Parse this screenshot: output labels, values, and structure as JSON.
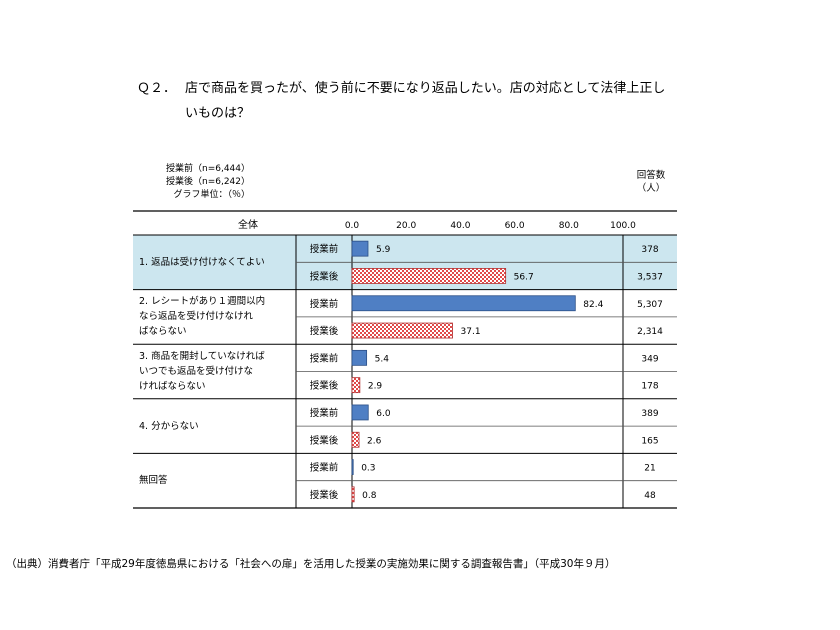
{
  "question": {
    "number": "Ｑ２．",
    "line1": "店で商品を買ったが、使う前に不要になり返品したい。店の対応として法律上正し",
    "line2": "いものは？"
  },
  "meta": {
    "n_before": "授業前（n=6,444）",
    "n_after": "授業後（n=6,242）",
    "unit": "グラフ単位：（％）"
  },
  "table_header": {
    "all": "全体",
    "count_line1": "回答数",
    "count_line2": "（人）"
  },
  "source": "（出典）消費者庁「平成29年度徳島県における「社会への扉」を活用した授業の実施効果に関する調査報告書」（平成30年９月）",
  "chart_data": {
    "type": "bar",
    "orientation": "horizontal",
    "xlim": [
      0,
      100
    ],
    "x_ticks": [
      "0.0",
      "20.0",
      "40.0",
      "60.0",
      "80.0",
      "100.0"
    ],
    "series": [
      {
        "name": "授業前",
        "color": "#4f7fc4",
        "pattern": "solid"
      },
      {
        "name": "授業後",
        "color": "#e14a4a",
        "pattern": "checker"
      }
    ],
    "highlight_color": "#cce6ef",
    "groups": [
      {
        "label_lines": [
          "1. 返品は受け付けなくてよい"
        ],
        "highlight": true,
        "before": {
          "value": 5.9,
          "label": "5.9",
          "count": "378"
        },
        "after": {
          "value": 56.7,
          "label": "56.7",
          "count": "3,537"
        }
      },
      {
        "label_lines": [
          "2. レシートがあり１週間以内",
          "なら返品を受け付けなけれ",
          "ばならない"
        ],
        "highlight": false,
        "before": {
          "value": 82.4,
          "label": "82.4",
          "count": "5,307"
        },
        "after": {
          "value": 37.1,
          "label": "37.1",
          "count": "2,314"
        }
      },
      {
        "label_lines": [
          "3. 商品を開封していなければ",
          "いつでも返品を受け付けな",
          "ければならない"
        ],
        "highlight": false,
        "before": {
          "value": 5.4,
          "label": "5.4",
          "count": "349"
        },
        "after": {
          "value": 2.9,
          "label": "2.9",
          "count": "178"
        }
      },
      {
        "label_lines": [
          "4. 分からない"
        ],
        "highlight": false,
        "before": {
          "value": 6.0,
          "label": "6.0",
          "count": "389"
        },
        "after": {
          "value": 2.6,
          "label": "2.6",
          "count": "165"
        }
      },
      {
        "label_lines": [
          "無回答"
        ],
        "highlight": false,
        "before": {
          "value": 0.3,
          "label": "0.3",
          "count": "21"
        },
        "after": {
          "value": 0.8,
          "label": "0.8",
          "count": "48"
        }
      }
    ]
  }
}
